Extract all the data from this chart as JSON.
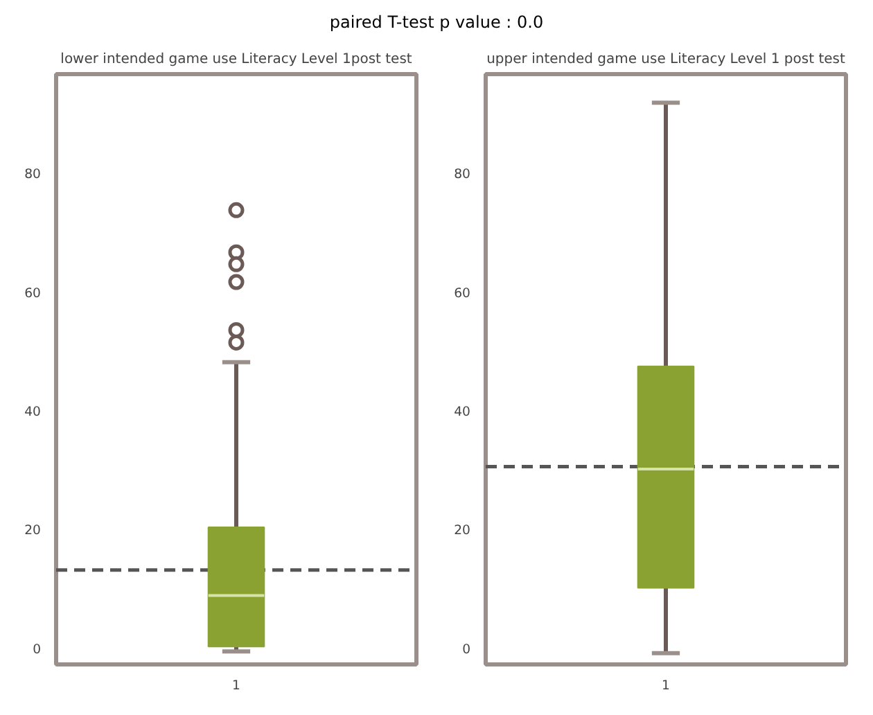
{
  "chart_data": [
    {
      "type": "box",
      "title": "lower intended game use Literacy Level 1post test",
      "annotations": [
        "paired T-test p value : 0.0"
      ],
      "categories": [
        "1"
      ],
      "boxes": [
        {
          "low": -0.5,
          "q1": 0.3,
          "median": 8.9,
          "q3": 20.4,
          "high": 48.2,
          "outliers": [
            73.8,
            66.7,
            64.7,
            61.7,
            53.6,
            51.5
          ]
        }
      ],
      "color": "#8aa232",
      "ylim": [
        -2.7,
        96.7
      ],
      "yticks": [
        0,
        20,
        40,
        60,
        80
      ],
      "grid": false,
      "ref_lines": [
        {
          "axis": "y",
          "value": 13.2,
          "color": "#555555",
          "line_style": "dashed"
        }
      ]
    },
    {
      "type": "box",
      "title": "upper intended game use Literacy Level 1 post test",
      "categories": [
        "1"
      ],
      "boxes": [
        {
          "low": -0.8,
          "q1": 10.2,
          "median": 30.2,
          "q3": 47.5,
          "high": 91.9
        }
      ],
      "color": "#8aa232",
      "ylim": [
        -2.7,
        96.7
      ],
      "yticks": [
        0,
        20,
        40,
        60,
        80
      ],
      "grid": false,
      "ref_lines": [
        {
          "axis": "y",
          "value": 30.6,
          "color": "#555555",
          "line_style": "dashed"
        }
      ]
    }
  ]
}
